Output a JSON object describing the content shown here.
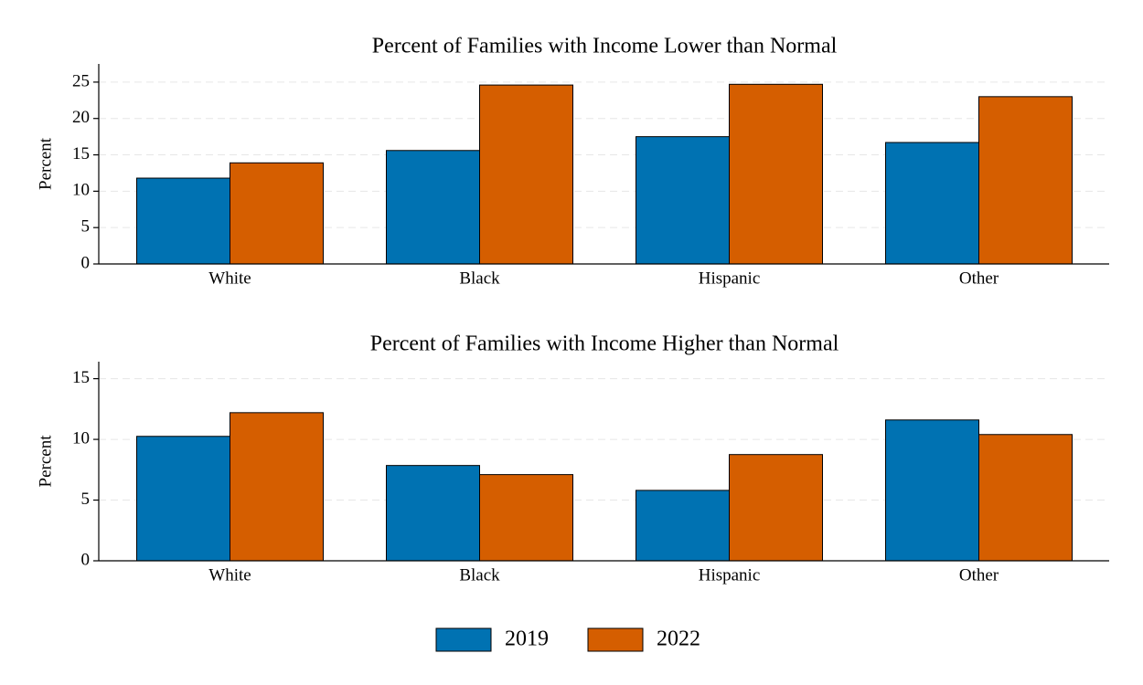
{
  "chart_data": [
    {
      "type": "bar",
      "title": "Percent of Families with Income Lower than Normal",
      "y_label": "Percent",
      "categories": [
        "White",
        "Black",
        "Hispanic",
        "Other"
      ],
      "series": [
        {
          "name": "2019",
          "color": "#0072b2",
          "values": [
            11.8,
            15.6,
            17.5,
            16.7
          ]
        },
        {
          "name": "2022",
          "color": "#d55e00",
          "values": [
            13.9,
            24.6,
            24.7,
            23.0
          ]
        }
      ],
      "ylim": [
        0,
        27.5
      ],
      "yticks": [
        0,
        5,
        10,
        15,
        20,
        25
      ],
      "grid": true
    },
    {
      "type": "bar",
      "title": "Percent of Families with Income Higher than Normal",
      "y_label": "Percent",
      "categories": [
        "White",
        "Black",
        "Hispanic",
        "Other"
      ],
      "series": [
        {
          "name": "2019",
          "color": "#0072b2",
          "values": [
            10.25,
            7.85,
            5.8,
            11.6
          ]
        },
        {
          "name": "2022",
          "color": "#d55e00",
          "values": [
            12.2,
            7.1,
            8.75,
            10.4
          ]
        }
      ],
      "ylim": [
        0,
        16.4
      ],
      "yticks": [
        0,
        5,
        10,
        15
      ],
      "grid": true
    }
  ]
}
